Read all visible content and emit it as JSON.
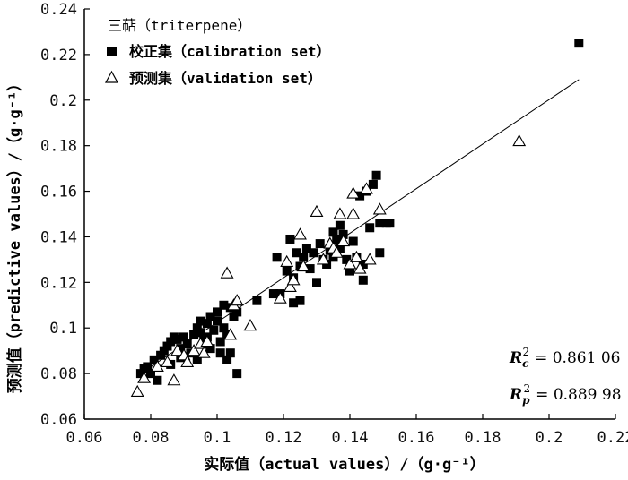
{
  "chart_data": {
    "type": "scatter",
    "xlabel": "实际值（actual values）/（g·g⁻¹）",
    "ylabel": "预测值（predictive values）/（g·g⁻¹）",
    "xlim": [
      0.06,
      0.22
    ],
    "ylim": [
      0.06,
      0.24
    ],
    "x_ticks": [
      "0.06",
      "0.08",
      "0.1",
      "0.12",
      "0.14",
      "0.16",
      "0.18",
      "0.2",
      "0.22"
    ],
    "y_ticks": [
      "0.06",
      "0.08",
      "0.1",
      "0.12",
      "0.14",
      "0.16",
      "0.18",
      "0.2",
      "0.22",
      "0.24"
    ],
    "legend_title": "三萜（triterpene）",
    "legend_position": "top-left",
    "series": [
      {
        "name": "校正集（calibration set）",
        "marker": "filled-square",
        "color": "#000000",
        "points": [
          [
            0.077,
            0.08
          ],
          [
            0.078,
            0.082
          ],
          [
            0.079,
            0.083
          ],
          [
            0.08,
            0.08
          ],
          [
            0.081,
            0.086
          ],
          [
            0.082,
            0.077
          ],
          [
            0.083,
            0.088
          ],
          [
            0.084,
            0.09
          ],
          [
            0.085,
            0.092
          ],
          [
            0.086,
            0.094
          ],
          [
            0.086,
            0.084
          ],
          [
            0.087,
            0.096
          ],
          [
            0.088,
            0.095
          ],
          [
            0.089,
            0.091
          ],
          [
            0.089,
            0.087
          ],
          [
            0.09,
            0.096
          ],
          [
            0.091,
            0.093
          ],
          [
            0.092,
            0.089
          ],
          [
            0.093,
            0.097
          ],
          [
            0.094,
            0.1
          ],
          [
            0.094,
            0.086
          ],
          [
            0.095,
            0.103
          ],
          [
            0.095,
            0.098
          ],
          [
            0.096,
            0.095
          ],
          [
            0.097,
            0.102
          ],
          [
            0.097,
            0.096
          ],
          [
            0.098,
            0.105
          ],
          [
            0.098,
            0.091
          ],
          [
            0.099,
            0.099
          ],
          [
            0.1,
            0.107
          ],
          [
            0.1,
            0.103
          ],
          [
            0.101,
            0.094
          ],
          [
            0.101,
            0.089
          ],
          [
            0.102,
            0.11
          ],
          [
            0.102,
            0.1
          ],
          [
            0.103,
            0.097
          ],
          [
            0.103,
            0.086
          ],
          [
            0.104,
            0.109
          ],
          [
            0.104,
            0.089
          ],
          [
            0.105,
            0.105
          ],
          [
            0.106,
            0.107
          ],
          [
            0.106,
            0.08
          ],
          [
            0.112,
            0.112
          ],
          [
            0.117,
            0.115
          ],
          [
            0.118,
            0.131
          ],
          [
            0.119,
            0.115
          ],
          [
            0.121,
            0.125
          ],
          [
            0.122,
            0.139
          ],
          [
            0.123,
            0.122
          ],
          [
            0.123,
            0.111
          ],
          [
            0.124,
            0.133
          ],
          [
            0.125,
            0.127
          ],
          [
            0.125,
            0.112
          ],
          [
            0.126,
            0.131
          ],
          [
            0.127,
            0.135
          ],
          [
            0.128,
            0.126
          ],
          [
            0.129,
            0.133
          ],
          [
            0.13,
            0.12
          ],
          [
            0.131,
            0.137
          ],
          [
            0.132,
            0.13
          ],
          [
            0.133,
            0.128
          ],
          [
            0.134,
            0.134
          ],
          [
            0.135,
            0.142
          ],
          [
            0.135,
            0.131
          ],
          [
            0.136,
            0.139
          ],
          [
            0.137,
            0.145
          ],
          [
            0.137,
            0.135
          ],
          [
            0.138,
            0.141
          ],
          [
            0.139,
            0.13
          ],
          [
            0.14,
            0.125
          ],
          [
            0.141,
            0.138
          ],
          [
            0.142,
            0.131
          ],
          [
            0.143,
            0.158
          ],
          [
            0.144,
            0.128
          ],
          [
            0.144,
            0.121
          ],
          [
            0.145,
            0.16
          ],
          [
            0.146,
            0.144
          ],
          [
            0.147,
            0.163
          ],
          [
            0.148,
            0.167
          ],
          [
            0.149,
            0.133
          ],
          [
            0.149,
            0.146
          ],
          [
            0.151,
            0.146
          ],
          [
            0.152,
            0.146
          ],
          [
            0.209,
            0.225
          ]
        ]
      },
      {
        "name": "预测集（validation set）",
        "marker": "open-triangle",
        "color": "#000000",
        "points": [
          [
            0.076,
            0.072
          ],
          [
            0.078,
            0.078
          ],
          [
            0.082,
            0.083
          ],
          [
            0.085,
            0.085
          ],
          [
            0.087,
            0.077
          ],
          [
            0.088,
            0.09
          ],
          [
            0.09,
            0.088
          ],
          [
            0.091,
            0.085
          ],
          [
            0.093,
            0.09
          ],
          [
            0.095,
            0.093
          ],
          [
            0.096,
            0.089
          ],
          [
            0.097,
            0.094
          ],
          [
            0.103,
            0.124
          ],
          [
            0.104,
            0.097
          ],
          [
            0.105,
            0.11
          ],
          [
            0.106,
            0.112
          ],
          [
            0.11,
            0.101
          ],
          [
            0.119,
            0.113
          ],
          [
            0.121,
            0.129
          ],
          [
            0.122,
            0.118
          ],
          [
            0.123,
            0.121
          ],
          [
            0.125,
            0.141
          ],
          [
            0.126,
            0.127
          ],
          [
            0.13,
            0.151
          ],
          [
            0.132,
            0.13
          ],
          [
            0.134,
            0.137
          ],
          [
            0.135,
            0.135
          ],
          [
            0.136,
            0.133
          ],
          [
            0.137,
            0.15
          ],
          [
            0.138,
            0.138
          ],
          [
            0.14,
            0.128
          ],
          [
            0.141,
            0.159
          ],
          [
            0.141,
            0.15
          ],
          [
            0.142,
            0.131
          ],
          [
            0.143,
            0.126
          ],
          [
            0.145,
            0.161
          ],
          [
            0.146,
            0.13
          ],
          [
            0.149,
            0.152
          ],
          [
            0.191,
            0.182
          ]
        ]
      }
    ],
    "fit_line": {
      "from": [
        0.077,
        0.08
      ],
      "to": [
        0.209,
        0.209
      ]
    },
    "annotations": [
      {
        "label": "R",
        "sub": "c",
        "sup": "2",
        "text": "= 0.861 06"
      },
      {
        "label": "R",
        "sub": "p",
        "sup": "2",
        "text": "= 0.889 98"
      }
    ]
  }
}
